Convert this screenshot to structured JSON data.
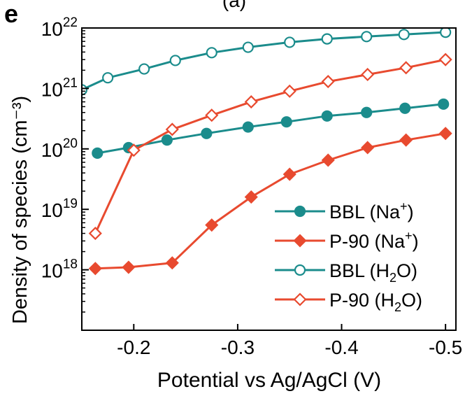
{
  "chart_data": {
    "type": "line",
    "panel_label": "e",
    "top_clipped_text": "(a)",
    "xlabel": "Potential vs Ag/AgCl (V)",
    "ylabel": "Density of species (cm⁻³)",
    "yscale": "log",
    "xlim": [
      -0.15,
      -0.51
    ],
    "ylim": [
      1e+17,
      1e+22
    ],
    "x_ticks": [
      {
        "value": -0.2,
        "label": "-0.2"
      },
      {
        "value": -0.3,
        "label": "-0.3"
      },
      {
        "value": -0.4,
        "label": "-0.4"
      },
      {
        "value": -0.5,
        "label": "-0.5"
      }
    ],
    "y_ticks": [
      {
        "exp": 18,
        "base": "10",
        "sup": "18"
      },
      {
        "exp": 19,
        "base": "10",
        "sup": "19"
      },
      {
        "exp": 20,
        "base": "10",
        "sup": "20"
      },
      {
        "exp": 21,
        "base": "10",
        "sup": "21"
      },
      {
        "exp": 22,
        "base": "10",
        "sup": "22"
      }
    ],
    "legend_position": "bottom-right",
    "series": [
      {
        "name": "BBL (Na+)",
        "legend_base": "BBL (Na",
        "legend_sup": "+",
        "legend_sub": "",
        "legend_tail": ")",
        "color": "#1b8c8c",
        "marker": "circle",
        "filled": true,
        "x": [
          -0.165,
          -0.195,
          -0.232,
          -0.27,
          -0.31,
          -0.347,
          -0.386,
          -0.424,
          -0.461,
          -0.498
        ],
        "y": [
          8.5e+19,
          1.05e+20,
          1.4e+20,
          1.8e+20,
          2.3e+20,
          2.8e+20,
          3.5e+20,
          4e+20,
          4.7e+20,
          5.5e+20
        ]
      },
      {
        "name": "P-90 (Na+)",
        "legend_base": "P-90 (Na",
        "legend_sup": "+",
        "legend_sub": "",
        "legend_tail": ")",
        "color": "#e84a2f",
        "marker": "diamond",
        "filled": true,
        "x": [
          -0.163,
          -0.195,
          -0.237,
          -0.275,
          -0.313,
          -0.35,
          -0.387,
          -0.425,
          -0.462,
          -0.5
        ],
        "y": [
          1.05e+18,
          1.1e+18,
          1.3e+18,
          5.5e+18,
          1.6e+19,
          3.8e+19,
          6.5e+19,
          1.05e+20,
          1.4e+20,
          1.8e+20
        ]
      },
      {
        "name": "BBL (H2O)",
        "legend_base": "BBL (H",
        "legend_sup": "",
        "legend_sub": "2",
        "legend_tail": "O)",
        "color": "#1b8c8c",
        "marker": "circle",
        "filled": false,
        "x": [
          -0.15,
          -0.175,
          -0.21,
          -0.24,
          -0.275,
          -0.31,
          -0.35,
          -0.386,
          -0.424,
          -0.46,
          -0.5
        ],
        "y": [
          9.5e+20,
          1.5e+21,
          2.1e+21,
          2.9e+21,
          3.9e+21,
          4.8e+21,
          5.8e+21,
          6.6e+21,
          7.2e+21,
          7.8e+21,
          8.5e+21
        ]
      },
      {
        "name": "P-90 (H2O)",
        "legend_base": "P-90 (H",
        "legend_sup": "",
        "legend_sub": "2",
        "legend_tail": "O)",
        "color": "#e84a2f",
        "marker": "diamond",
        "filled": false,
        "x": [
          -0.163,
          -0.2,
          -0.237,
          -0.275,
          -0.313,
          -0.35,
          -0.387,
          -0.425,
          -0.462,
          -0.5
        ],
        "y": [
          4e+18,
          9.5e+19,
          2.1e+20,
          3.6e+20,
          6e+20,
          9e+20,
          1.3e+21,
          1.7e+21,
          2.2e+21,
          3e+21
        ]
      }
    ]
  }
}
